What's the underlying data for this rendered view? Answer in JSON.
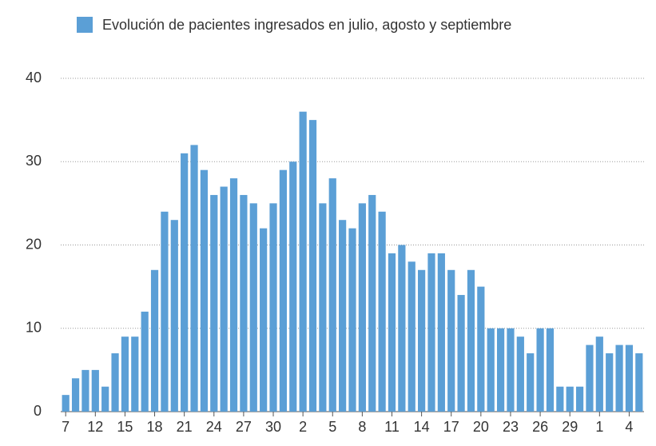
{
  "chart_data": {
    "type": "bar",
    "legend": "Evolución de pacientes ingresados en julio, agosto y septiembre",
    "color": "#5b9fd6",
    "categories": [
      "7",
      null,
      null,
      "12",
      null,
      null,
      "15",
      null,
      null,
      "18",
      null,
      null,
      "21",
      null,
      null,
      "24",
      null,
      null,
      "27",
      null,
      null,
      "30",
      null,
      null,
      "2",
      null,
      null,
      "5",
      null,
      null,
      "8",
      null,
      null,
      "11",
      null,
      null,
      "14",
      null,
      null,
      "17",
      null,
      null,
      "20",
      null,
      null,
      "23",
      null,
      null,
      "26",
      null,
      null,
      "29",
      null,
      null,
      "1",
      null,
      null,
      "4",
      null
    ],
    "values": [
      2,
      4,
      5,
      5,
      3,
      7,
      9,
      9,
      12,
      17,
      24,
      23,
      31,
      32,
      29,
      26,
      27,
      28,
      26,
      25,
      22,
      25,
      29,
      30,
      36,
      35,
      25,
      28,
      23,
      22,
      25,
      26,
      24,
      19,
      20,
      18,
      17,
      19,
      19,
      17,
      14,
      17,
      15,
      10,
      10,
      10,
      9,
      7,
      10,
      10,
      3,
      3,
      3,
      8,
      9,
      7,
      8,
      8,
      7
    ],
    "ylim": [
      0,
      40
    ],
    "yticks": [
      0,
      10,
      20,
      30,
      40
    ],
    "grid": true
  }
}
